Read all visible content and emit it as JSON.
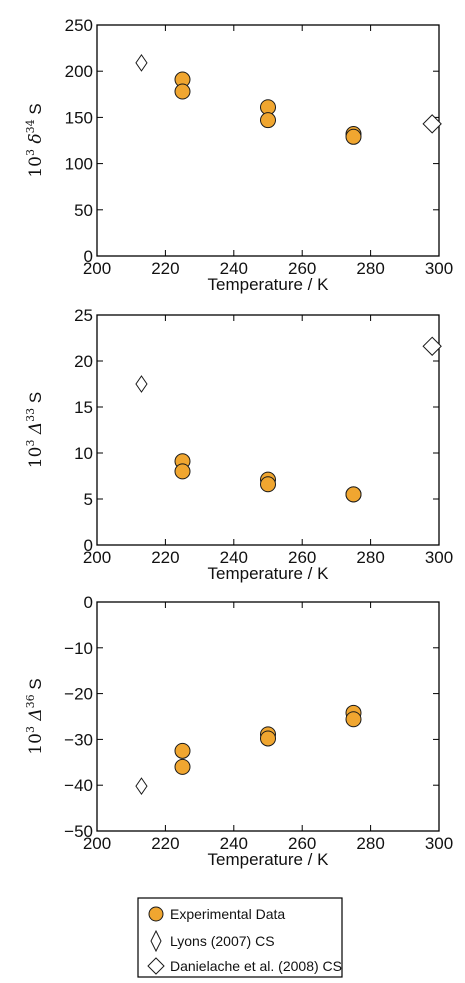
{
  "colors": {
    "experimental_fill": "#F0A630",
    "marker_edge": "#1a1a1a",
    "axis": "#000000"
  },
  "chart_data": [
    {
      "type": "scatter",
      "xlabel": "Temperature / K",
      "ylabel": {
        "prefix": "10",
        "exp": "3",
        "symbol": "δ",
        "mass": "34",
        "species": "S"
      },
      "xlim": [
        200,
        300
      ],
      "ylim": [
        0,
        250
      ],
      "xticks": [
        "200",
        "220",
        "240",
        "260",
        "280",
        "300"
      ],
      "yticks": [
        "0",
        "50",
        "100",
        "150",
        "200",
        "250"
      ],
      "series": [
        {
          "name": "Experimental Data",
          "marker": "circle",
          "x": [
            225,
            225,
            250,
            250,
            275,
            275
          ],
          "y": [
            191,
            178,
            161,
            147,
            132,
            129
          ]
        },
        {
          "name": "Lyons (2007) CS",
          "marker": "thin-diamond",
          "x": [
            213
          ],
          "y": [
            209
          ]
        },
        {
          "name": "Danielache et al. (2008) CS",
          "marker": "diamond",
          "x": [
            298
          ],
          "y": [
            143
          ]
        }
      ]
    },
    {
      "type": "scatter",
      "xlabel": "Temperature / K",
      "ylabel": {
        "prefix": "10",
        "exp": "3",
        "symbol": "Δ",
        "mass": "33",
        "species": "S"
      },
      "xlim": [
        200,
        300
      ],
      "ylim": [
        0,
        25
      ],
      "xticks": [
        "200",
        "220",
        "240",
        "260",
        "280",
        "300"
      ],
      "yticks": [
        "0",
        "5",
        "10",
        "15",
        "20",
        "25"
      ],
      "series": [
        {
          "name": "Experimental Data",
          "marker": "circle",
          "x": [
            225,
            225,
            250,
            250,
            275,
            275
          ],
          "y": [
            9.1,
            8.0,
            7.1,
            6.6,
            5.5,
            5.5
          ]
        },
        {
          "name": "Lyons (2007) CS",
          "marker": "thin-diamond",
          "x": [
            213
          ],
          "y": [
            17.5
          ]
        },
        {
          "name": "Danielache et al. (2008) CS",
          "marker": "diamond",
          "x": [
            298
          ],
          "y": [
            21.6
          ]
        }
      ]
    },
    {
      "type": "scatter",
      "xlabel": "Temperature / K",
      "ylabel": {
        "prefix": "10",
        "exp": "3",
        "symbol": "Δ",
        "mass": "36",
        "species": "S"
      },
      "xlim": [
        200,
        300
      ],
      "ylim": [
        -50,
        0
      ],
      "xticks": [
        "200",
        "220",
        "240",
        "260",
        "280",
        "300"
      ],
      "yticks": [
        "0",
        "−10",
        "−20",
        "−30",
        "−40",
        "−50"
      ],
      "series": [
        {
          "name": "Experimental Data",
          "marker": "circle",
          "x": [
            225,
            225,
            250,
            250,
            275,
            275
          ],
          "y": [
            -32.5,
            -36.0,
            -28.9,
            -29.8,
            -24.2,
            -25.6
          ]
        },
        {
          "name": "Lyons (2007) CS",
          "marker": "thin-diamond",
          "x": [
            213
          ],
          "y": [
            -40.2
          ]
        }
      ]
    }
  ],
  "legend": {
    "placement": "bottom",
    "entries": [
      {
        "label": "Experimental Data",
        "marker": "circle"
      },
      {
        "label": "Lyons (2007) CS",
        "marker": "thin-diamond"
      },
      {
        "label": "Danielache et al. (2008) CS",
        "marker": "diamond"
      }
    ]
  }
}
